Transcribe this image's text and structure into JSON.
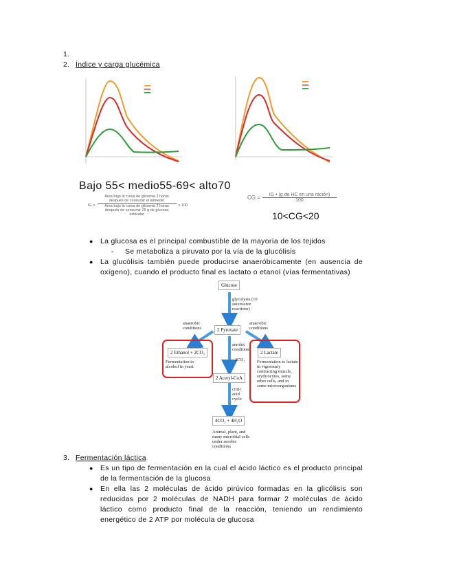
{
  "list": {
    "item1": "1.",
    "item2_num": "2.",
    "item2_title": "Índice y carga glucémica",
    "item3_num": "3.",
    "item3_title": "Fermentación láctica"
  },
  "glycemic": {
    "ranges": "Bajo 55< medio55-69< alto70",
    "ig_formula": {
      "lhs": "IG =",
      "numerator": "Área bajo la curva de glicemia 2 horas después de consumir el alimento",
      "denominator": "Área bajo la curva de glicemia 2 horas después de consumir 25 g de glucosa estándar",
      "factor": "x 100"
    },
    "cg_formula": {
      "lhs": "CG =",
      "numerator": "IG • (g de HC en una ración)",
      "denominator": "100"
    },
    "cg_range": "10<CG<20",
    "chart_colors": {
      "orange": "#f39a2e",
      "red": "#d42a2a",
      "green": "#2e9a3a"
    }
  },
  "bullets_section2": [
    "La glucosa es el principal combustible de la mayoría de los tejidos",
    "La glucólisis también puede producirse anaeróbicamente (en ausencia de oxígeno), cuando el producto final es lactato o etanol (vías fermentativas)"
  ],
  "sub_bullet": {
    "marker": "-",
    "text": "Se metaboliza a piruvato por la vía de la glucólisis"
  },
  "diagram": {
    "glucose": "Glucose",
    "glycolysis": "glycolysis (10 successive reactions)",
    "pyruvate": "2 Pyruvate",
    "anaerobic_left": "anaerobic conditions",
    "anaerobic_right": "anaerobic conditions",
    "ethanol": "2 Ethanol + 2CO₂",
    "ethanol_note": "Fermentation to alcohol in yeast",
    "aerobic": "aerobic conditions",
    "co2": "2CO₂",
    "acetyl": "2 Acetyl-CoA",
    "lactate": "2 Lactate",
    "lactate_note": "Fermentation to lactate in vigorously contracting muscle, erythrocytes, some other cells, and in some microorganisms",
    "citric": "citric acid cycle",
    "final": "4CO₂ + 4H₂O",
    "final_note": "Animal, plant, and many microbial cells under aerobic conditions"
  },
  "bullets_section3": [
    "Es un tipo de fermentación en la cual el ácido láctico es el producto principal de la fermentación de la glucosa",
    "En ella las 2 moléculas de ácido pirúvico formadas en la glicólisis son reducidas por 2 moléculas de NADH para formar 2 moléculas de ácido láctico como producto final de la reacción, teniendo un rendimiento energético de 2 ATP por molécula de glucosa"
  ]
}
